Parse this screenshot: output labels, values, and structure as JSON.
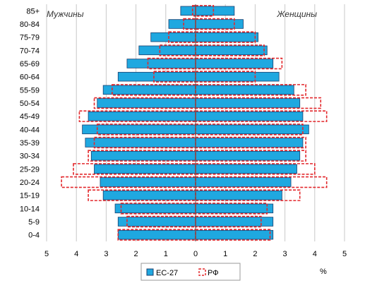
{
  "chart_data": {
    "type": "bar",
    "orientation": "horizontal",
    "layout": "population-pyramid",
    "categories": [
      "85+",
      "80-84",
      "75-79",
      "70-74",
      "65-69",
      "60-64",
      "55-59",
      "50-54",
      "45-49",
      "40-44",
      "35-39",
      "30-34",
      "25-29",
      "20-24",
      "15-19",
      "10-14",
      "5-9",
      "0-4"
    ],
    "xlabel": "%",
    "xlim": [
      -5,
      5
    ],
    "x_ticks": [
      5,
      4,
      3,
      2,
      1,
      0,
      1,
      2,
      3,
      4,
      5
    ],
    "grid": "vertical",
    "legend": "bottom",
    "left_label": "Мужчины",
    "right_label": "Женщины",
    "colors": {
      "eu_fill": "#1fa8e0",
      "eu_stroke": "#1a3f6f",
      "rf_stroke": "#e3282c",
      "grid": "#c8c8c8"
    },
    "series": [
      {
        "name": "ЕС-27",
        "style": "filled",
        "male": [
          0.5,
          0.9,
          1.5,
          1.9,
          2.3,
          2.6,
          3.1,
          3.3,
          3.6,
          3.8,
          3.7,
          3.5,
          3.4,
          3.2,
          3.1,
          2.7,
          2.6,
          2.6
        ],
        "female": [
          1.3,
          1.6,
          2.1,
          2.4,
          2.6,
          2.8,
          3.3,
          3.5,
          3.6,
          3.8,
          3.6,
          3.5,
          3.4,
          3.2,
          2.9,
          2.6,
          2.6,
          2.6
        ]
      },
      {
        "name": "РФ",
        "style": "dashed-outline",
        "male": [
          0.1,
          0.4,
          0.9,
          1.2,
          1.6,
          1.4,
          2.8,
          3.4,
          3.9,
          3.3,
          3.4,
          3.6,
          4.1,
          4.5,
          3.6,
          2.5,
          2.3,
          2.6
        ],
        "female": [
          0.6,
          1.3,
          2.0,
          2.3,
          2.9,
          2.0,
          3.7,
          4.2,
          4.4,
          3.6,
          3.7,
          3.7,
          4.0,
          4.4,
          3.5,
          2.4,
          2.2,
          2.5
        ]
      }
    ]
  }
}
